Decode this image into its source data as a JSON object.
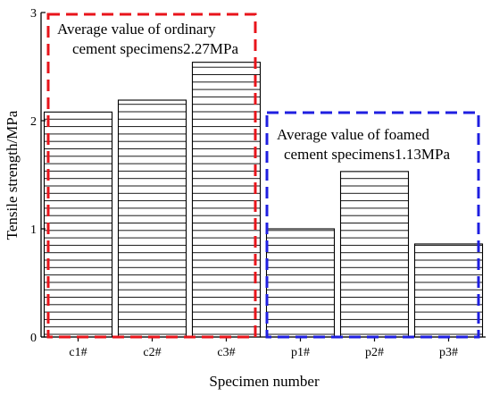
{
  "chart_data": {
    "type": "bar",
    "title": "",
    "xlabel": "Specimen number",
    "ylabel": "Tensile strength/MPa",
    "categories": [
      "c1#",
      "c2#",
      "c3#",
      "p1#",
      "p2#",
      "p3#"
    ],
    "values": [
      2.08,
      2.19,
      2.54,
      1.0,
      1.53,
      0.86
    ],
    "ylim": [
      0,
      3
    ],
    "yticks": [
      0,
      1,
      2,
      3
    ],
    "bar_pattern": "horizontal-hatch",
    "annotations": [
      {
        "group": "ordinary",
        "lines": [
          "Average value of ordinary",
          "cement specimens2.27MPa"
        ],
        "box_color": "#e8141b"
      },
      {
        "group": "foamed",
        "lines": [
          "Average value of foamed",
          "cement specimens1.13MPa"
        ],
        "box_color": "#1f1fe0"
      }
    ]
  }
}
